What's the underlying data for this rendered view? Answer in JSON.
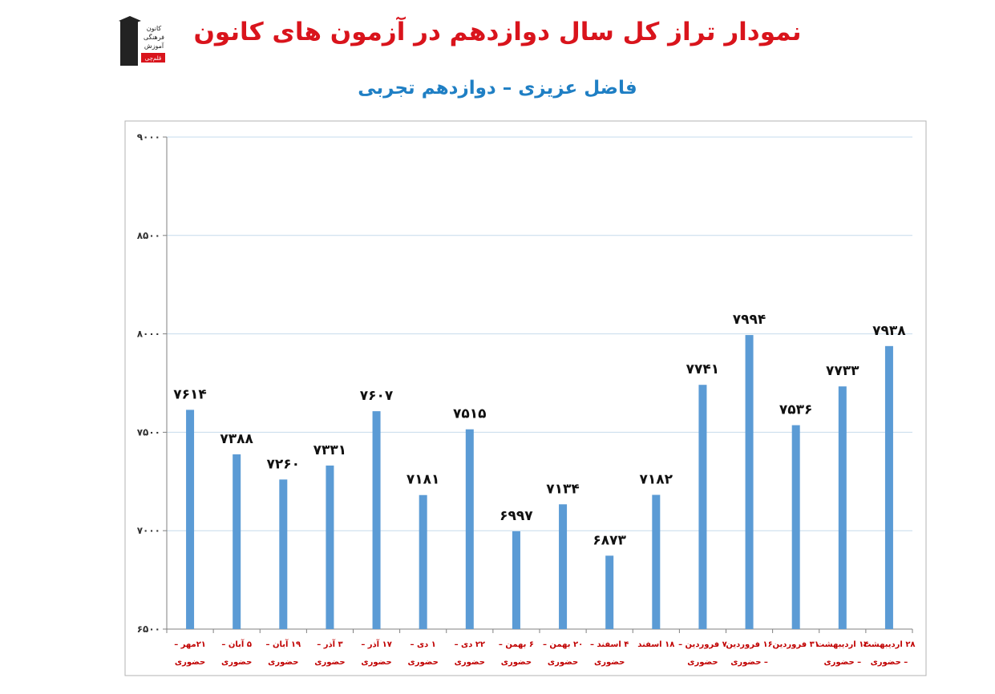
{
  "header": {
    "title": "نمودار تراز کل سال دوازدهم در آزمون های کانون",
    "subtitle": "فاضل عزیزی – دوازدهم تجربی",
    "logo": {
      "line1": "کانون",
      "line2": "فرهنگی",
      "line3": "آموزش",
      "badge": "قلم‌چی"
    }
  },
  "colors": {
    "bar": "#5b9bd5",
    "title": "#d9141c",
    "subtitle": "#1f7fc4",
    "xlabel": "#c00000",
    "grid": "#c6dbec"
  },
  "chart_data": {
    "type": "bar",
    "title": "نمودار تراز کل سال دوازدهم در آزمون های کانون",
    "subtitle": "فاضل عزیزی – دوازدهم تجربی",
    "ylim": [
      6500,
      9000
    ],
    "yticks": [
      6500,
      7000,
      7500,
      8000,
      8500,
      9000
    ],
    "ytick_labels": [
      "۶۵۰۰",
      "۷۰۰۰",
      "۷۵۰۰",
      "۸۰۰۰",
      "۸۵۰۰",
      "۹۰۰۰"
    ],
    "grid": true,
    "categories": [
      [
        "۲۱مهر –",
        "حضوری"
      ],
      [
        "۵ آبان –",
        "حضوری"
      ],
      [
        "۱۹ آبان –",
        "حضوری"
      ],
      [
        "۳ آذر –",
        "حضوری"
      ],
      [
        "۱۷ آذر –",
        "حضوری"
      ],
      [
        "۱ دی –",
        "حضوری"
      ],
      [
        "۲۲ دی –",
        "حضوری"
      ],
      [
        "۶ بهمن –",
        "حضوری"
      ],
      [
        "۲۰ بهمن –",
        "حضوری"
      ],
      [
        "۴ اسفند –",
        "حضوری"
      ],
      [
        "۱۸ اسفند",
        ""
      ],
      [
        "۷ فروردین –",
        "حضوری"
      ],
      [
        "۱۶ فروردین",
        "– حضوری"
      ],
      [
        "۳۱ فروردین",
        ""
      ],
      [
        "۱۴ اردیبهشت",
        "– حضوری"
      ],
      [
        "۲۸ اردیبهشت",
        "– حضوری"
      ]
    ],
    "values": [
      7614,
      7388,
      7260,
      7331,
      7607,
      7181,
      7515,
      6997,
      7134,
      6873,
      7182,
      7741,
      7994,
      7536,
      7733,
      7938
    ],
    "data_labels": [
      "۷۶۱۴",
      "۷۳۸۸",
      "۷۲۶۰",
      "۷۳۳۱",
      "۷۶۰۷",
      "۷۱۸۱",
      "۷۵۱۵",
      "۶۹۹۷",
      "۷۱۳۴",
      "۶۸۷۳",
      "۷۱۸۲",
      "۷۷۴۱",
      "۷۹۹۴",
      "۷۵۳۶",
      "۷۷۳۳",
      "۷۹۳۸"
    ]
  }
}
